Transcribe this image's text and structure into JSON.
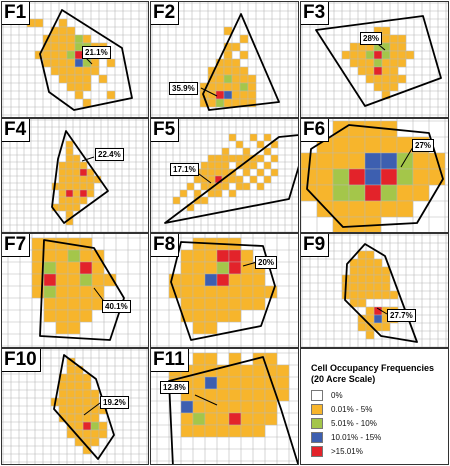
{
  "legend": {
    "title": "Cell Occupancy Frequencies (20 Acre Scale)",
    "items": [
      {
        "label": "0%",
        "color": "#ffffff"
      },
      {
        "label": "0.01% - 5%",
        "color": "#f7b52c"
      },
      {
        "label": "5.01% - 10%",
        "color": "#a4c64a"
      },
      {
        "label": "10.01% - 15%",
        "color": "#3d5fb0"
      },
      {
        "label": ">15.01%",
        "color": "#e3232a"
      }
    ]
  },
  "panels": [
    {
      "id": "F1",
      "label": "F1",
      "callout": "21.1%"
    },
    {
      "id": "F2",
      "label": "F2",
      "callout": "35.9%"
    },
    {
      "id": "F3",
      "label": "F3",
      "callout": "28%"
    },
    {
      "id": "F4",
      "label": "F4",
      "callout": "22.4%"
    },
    {
      "id": "F5",
      "label": "F5",
      "callout": "17.1%"
    },
    {
      "id": "F6",
      "label": "F6",
      "callout": "27%"
    },
    {
      "id": "F7",
      "label": "F7",
      "callout": "40.1%"
    },
    {
      "id": "F8",
      "label": "F8",
      "callout": "20%"
    },
    {
      "id": "F9",
      "label": "F9",
      "callout": "27.7%"
    },
    {
      "id": "F10",
      "label": "F10",
      "callout": "19.2%"
    },
    {
      "id": "F11",
      "label": "F11",
      "callout": "12.8%"
    }
  ]
}
